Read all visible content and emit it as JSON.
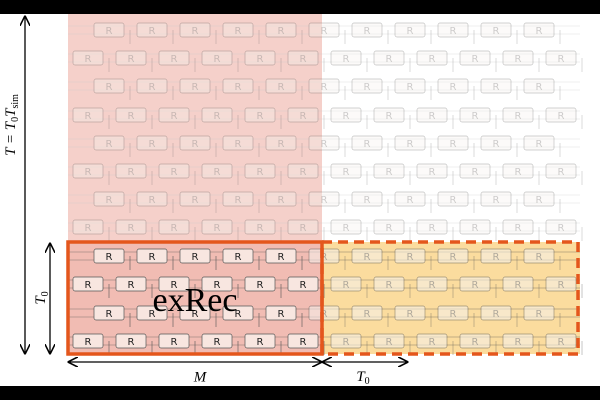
{
  "box_label": "R",
  "block_label": "exRec",
  "width_label": "M",
  "extra_width_label": {
    "main": "T",
    "sub": "0"
  },
  "height_label": {
    "main": "T",
    "sub": "0"
  },
  "total_height_label": {
    "part1": "T = T",
    "sub1": "0",
    "part2": "T",
    "sub2": "sim"
  }
}
